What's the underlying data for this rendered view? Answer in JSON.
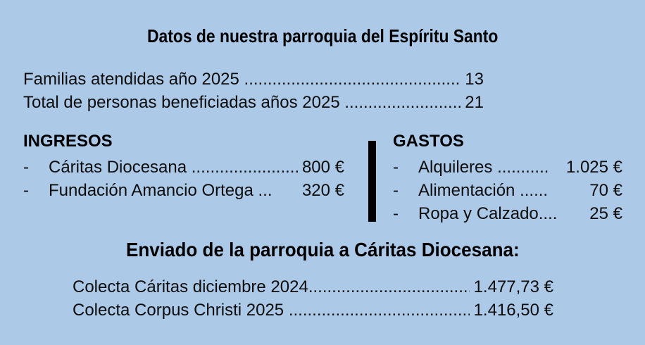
{
  "page": {
    "background_color": "#ACC9E8",
    "text_color": "#0d0d0d",
    "divider_color": "#000000"
  },
  "title": "Datos de nuestra parroquia del Espíritu Santo",
  "stats": {
    "rows": [
      {
        "label": "Familias atendidas año 2025 ",
        "dots": "............................................................",
        "value": "13"
      },
      {
        "label": "Total de personas beneficiadas años 2025 ",
        "dots": "........................................",
        "value": "21"
      }
    ]
  },
  "ingresos": {
    "header": "INGRESOS",
    "bullet": "-",
    "items": [
      {
        "label": "Cáritas Diocesana ",
        "dots": "..............................",
        "value": "800 €"
      },
      {
        "label": "Fundación Amancio Ortega ",
        "dots": "...",
        "value": "320 €"
      }
    ]
  },
  "gastos": {
    "header": "GASTOS",
    "bullet": "-",
    "items": [
      {
        "label": "Alquileres ",
        "dots": "...........",
        "value": "1.025 €"
      },
      {
        "label": "Alimentación ",
        "dots": "......",
        "value": "70 €"
      },
      {
        "label": "Ropa y Calzado",
        "dots": "....",
        "value": "25 €"
      }
    ]
  },
  "subtitle": "Enviado de la parroquia a Cáritas Diocesana:",
  "colectas": {
    "rows": [
      {
        "label": "Colecta Cáritas diciembre 2024",
        "dots": "..................................................",
        "value": "1.477,73 €"
      },
      {
        "label": "Colecta Corpus Christi 2025 ",
        "dots": "..................................................",
        "value": "1.416,50 €"
      }
    ]
  }
}
